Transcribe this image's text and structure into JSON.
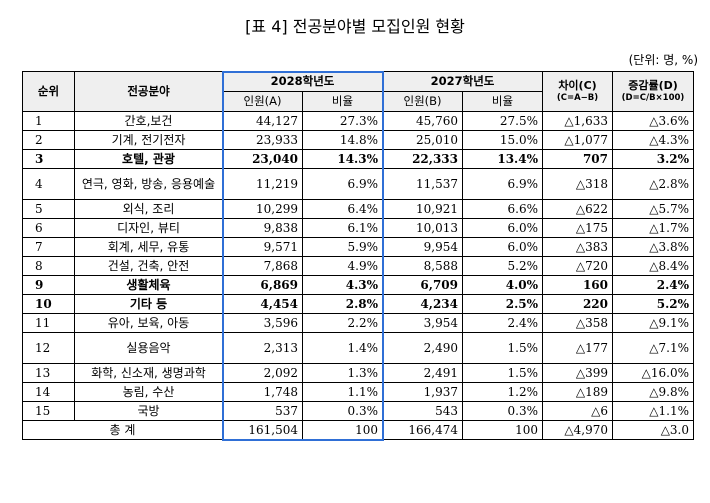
{
  "title": "[표 4] 전공분야별 모집인원 현황",
  "unit": "(단위: 명, %)",
  "headers": {
    "rank": "순위",
    "field": "전공분야",
    "y2028": "2028학년도",
    "y2027": "2027학년도",
    "count_a": "인원(A)",
    "ratio": "비율",
    "count_b": "인원(B)",
    "diff": "차이(C)",
    "diff_formula": "(C=A−B)",
    "rate": "증감률(D)",
    "rate_formula": "(D=C/B×100)"
  },
  "rows": [
    {
      "rank": "1",
      "field": "간호,보건",
      "a": "44,127",
      "ar": "27.3%",
      "b": "45,760",
      "br": "27.5%",
      "c": "△1,633",
      "d": "△3.6%",
      "bold": false
    },
    {
      "rank": "2",
      "field": "기계, 전기전자",
      "a": "23,933",
      "ar": "14.8%",
      "b": "25,010",
      "br": "15.0%",
      "c": "△1,077",
      "d": "△4.3%",
      "bold": false
    },
    {
      "rank": "3",
      "field": "호텔, 관광",
      "a": "23,040",
      "ar": "14.3%",
      "b": "22,333",
      "br": "13.4%",
      "c": "707",
      "d": "3.2%",
      "bold": true
    },
    {
      "rank": "4",
      "field": "연극, 영화, 방송, 응용예술",
      "a": "11,219",
      "ar": "6.9%",
      "b": "11,537",
      "br": "6.9%",
      "c": "△318",
      "d": "△2.8%",
      "bold": false
    },
    {
      "rank": "5",
      "field": "외식, 조리",
      "a": "10,299",
      "ar": "6.4%",
      "b": "10,921",
      "br": "6.6%",
      "c": "△622",
      "d": "△5.7%",
      "bold": false
    },
    {
      "rank": "6",
      "field": "디자인, 뷰티",
      "a": "9,838",
      "ar": "6.1%",
      "b": "10,013",
      "br": "6.0%",
      "c": "△175",
      "d": "△1.7%",
      "bold": false
    },
    {
      "rank": "7",
      "field": "회계, 세무, 유통",
      "a": "9,571",
      "ar": "5.9%",
      "b": "9,954",
      "br": "6.0%",
      "c": "△383",
      "d": "△3.8%",
      "bold": false
    },
    {
      "rank": "8",
      "field": "건설, 건축, 안전",
      "a": "7,868",
      "ar": "4.9%",
      "b": "8,588",
      "br": "5.2%",
      "c": "△720",
      "d": "△8.4%",
      "bold": false
    },
    {
      "rank": "9",
      "field": "생활체육",
      "a": "6,869",
      "ar": "4.3%",
      "b": "6,709",
      "br": "4.0%",
      "c": "160",
      "d": "2.4%",
      "bold": true
    },
    {
      "rank": "10",
      "field": "기타 등",
      "a": "4,454",
      "ar": "2.8%",
      "b": "4,234",
      "br": "2.5%",
      "c": "220",
      "d": "5.2%",
      "bold": true
    },
    {
      "rank": "11",
      "field": "유아, 보육, 아동",
      "a": "3,596",
      "ar": "2.2%",
      "b": "3,954",
      "br": "2.4%",
      "c": "△358",
      "d": "△9.1%",
      "bold": false
    },
    {
      "rank": "12",
      "field": "실용음악",
      "a": "2,313",
      "ar": "1.4%",
      "b": "2,490",
      "br": "1.5%",
      "c": "△177",
      "d": "△7.1%",
      "bold": false
    },
    {
      "rank": "13",
      "field": "화학, 신소재, 생명과학",
      "a": "2,092",
      "ar": "1.3%",
      "b": "2,491",
      "br": "1.5%",
      "c": "△399",
      "d": "△16.0%",
      "bold": false
    },
    {
      "rank": "14",
      "field": "농림, 수산",
      "a": "1,748",
      "ar": "1.1%",
      "b": "1,937",
      "br": "1.2%",
      "c": "△189",
      "d": "△9.8%",
      "bold": false
    },
    {
      "rank": "15",
      "field": "국방",
      "a": "537",
      "ar": "0.3%",
      "b": "543",
      "br": "0.3%",
      "c": "△6",
      "d": "△1.1%",
      "bold": false
    }
  ],
  "total": {
    "label": "총 계",
    "a": "161,504",
    "ar": "100",
    "b": "166,474",
    "br": "100",
    "c": "△4,970",
    "d": "△3.0"
  },
  "highlight_color": "#2f6fd6"
}
